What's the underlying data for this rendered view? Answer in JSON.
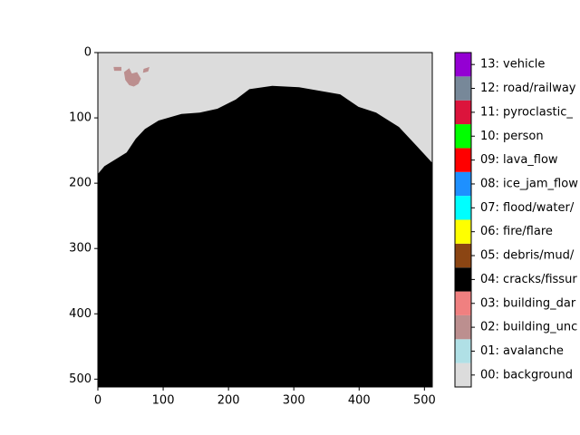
{
  "chart_data": {
    "type": "image",
    "xlim": [
      0,
      512
    ],
    "ylim": [
      512,
      0
    ],
    "xticks": [
      0,
      100,
      200,
      300,
      400,
      500
    ],
    "yticks": [
      0,
      100,
      200,
      300,
      400,
      500
    ],
    "background_class": 0,
    "classes": [
      {
        "name": "00: background",
        "color": "#dcdcdc"
      },
      {
        "name": "01: avalanche",
        "color": "#b0e0e6"
      },
      {
        "name": "02: building_unc",
        "color": "#bc8f8f"
      },
      {
        "name": "03: building_dar",
        "color": "#f08080"
      },
      {
        "name": "04: cracks/fissur",
        "color": "#000000"
      },
      {
        "name": "05: debris/mud/",
        "color": "#8b4513"
      },
      {
        "name": "06: fire/flare",
        "color": "#ffff00"
      },
      {
        "name": "07: flood/water/",
        "color": "#00ffff"
      },
      {
        "name": "08: ice_jam_flow",
        "color": "#1e90ff"
      },
      {
        "name": "09: lava_flow",
        "color": "#ff0000"
      },
      {
        "name": "10: person",
        "color": "#00ff00"
      },
      {
        "name": "11: pyroclastic_",
        "color": "#dc143c"
      },
      {
        "name": "12: road/railway",
        "color": "#778899"
      },
      {
        "name": "13: vehicle",
        "color": "#9400d3"
      }
    ],
    "regions": [
      {
        "class": 4,
        "x": [
          0,
          10,
          44,
          58,
          72,
          93,
          128,
          156,
          183,
          211,
          232,
          267,
          308,
          336,
          371,
          399,
          426,
          461,
          489,
          512,
          512,
          0
        ],
        "y": [
          186,
          174,
          153,
          132,
          117,
          104,
          94,
          92,
          86,
          72,
          56,
          51,
          53,
          58,
          64,
          83,
          92,
          114,
          144,
          169,
          512,
          512
        ]
      },
      {
        "class": 2,
        "x": [
          40,
          48,
          52,
          60,
          66,
          62,
          55,
          48,
          42
        ],
        "y": [
          30,
          24,
          32,
          30,
          40,
          48,
          52,
          50,
          42
        ]
      },
      {
        "class": 2,
        "x": [
          24,
          36,
          36,
          25
        ],
        "y": [
          22,
          22,
          28,
          28
        ]
      },
      {
        "class": 2,
        "x": [
          70,
          79,
          77,
          69
        ],
        "y": [
          25,
          22,
          29,
          31
        ]
      }
    ]
  }
}
